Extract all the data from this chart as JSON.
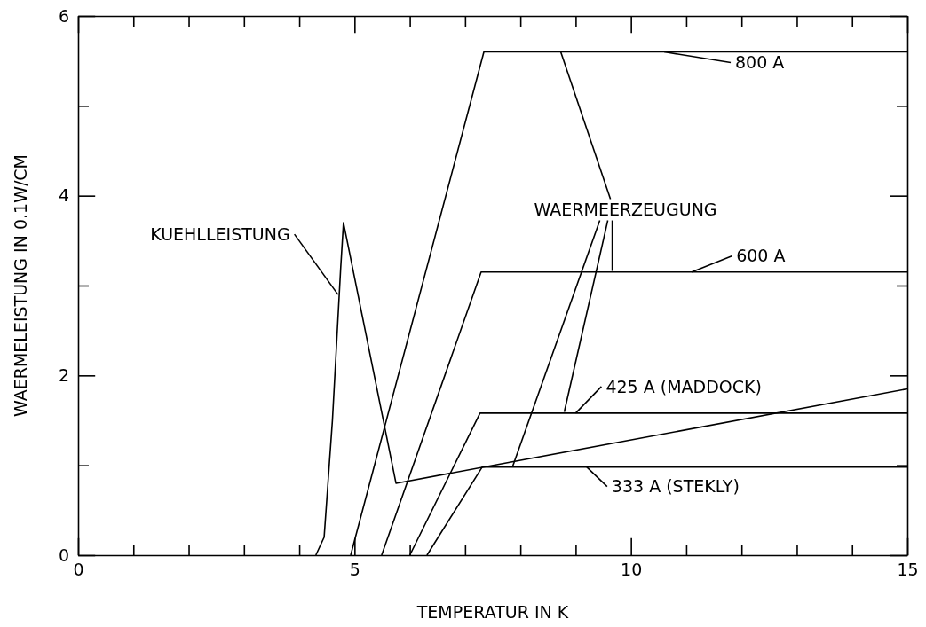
{
  "chart_data": {
    "type": "line",
    "xlabel": "TEMPERATUR IN K",
    "ylabel": "WAERMELEISTUNG IN 0.1W/CM",
    "xlim": [
      0,
      15
    ],
    "ylim": [
      0,
      6
    ],
    "xticks": [
      0,
      {
        "value": 1,
        "label": null
      },
      {
        "value": 2,
        "label": null
      },
      {
        "value": 3,
        "label": null
      },
      {
        "value": 4,
        "label": null
      },
      5,
      {
        "value": 6,
        "label": null
      },
      {
        "value": 7,
        "label": null
      },
      {
        "value": 8,
        "label": null
      },
      {
        "value": 9,
        "label": null
      },
      10,
      {
        "value": 11,
        "label": null
      },
      {
        "value": 12,
        "label": null
      },
      {
        "value": 13,
        "label": null
      },
      {
        "value": 14,
        "label": null
      },
      15
    ],
    "yticks": [
      0,
      {
        "value": 1,
        "label": null
      },
      2,
      {
        "value": 3,
        "label": null
      },
      4,
      {
        "value": 5,
        "label": null
      },
      6
    ],
    "grid": false,
    "marker": "none",
    "line_style": "solid",
    "series": [
      {
        "color": "#000000",
        "x": [
          4.3,
          4.45,
          4.6,
          4.75,
          4.8,
          5.75,
          15
        ],
        "values": [
          0,
          0.2,
          1.5,
          3.2,
          3.7,
          0.8,
          1.85
        ]
      },
      {
        "color": "#000000",
        "x": [
          4.93,
          7.34,
          15
        ],
        "values": [
          0,
          5.6,
          5.6
        ]
      },
      {
        "color": "#000000",
        "x": [
          5.49,
          7.29,
          15
        ],
        "values": [
          0,
          3.15,
          3.15
        ]
      },
      {
        "color": "#000000",
        "x": [
          6.0,
          7.27,
          15
        ],
        "values": [
          0,
          1.58,
          1.58
        ]
      },
      {
        "color": "#000000",
        "x": [
          6.31,
          7.31,
          15
        ],
        "values": [
          0,
          0.98,
          0.98
        ]
      }
    ],
    "annotations": [
      {
        "text": "800 A",
        "x": 10.6,
        "y": 5.6
      },
      {
        "text": "600 A",
        "x": 11.1,
        "y": 3.15
      },
      {
        "text": "425 A (MADDOCK)",
        "x": 9.0,
        "y": 1.58
      },
      {
        "text": "333 A (STEKLY)",
        "x": 9.2,
        "y": 0.98
      },
      {
        "text": "KUEHLLEISTUNG",
        "x": 4.7,
        "y": 2.9
      },
      {
        "text": "WAERMEERZEUGUNG",
        "x": 8.73,
        "y": 5.6
      }
    ]
  }
}
